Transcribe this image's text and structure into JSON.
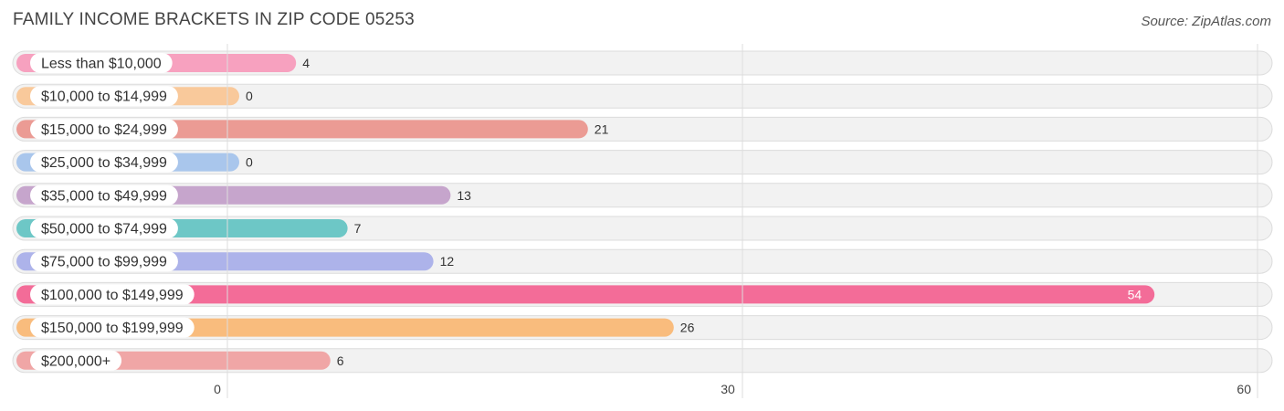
{
  "header": {
    "title": "FAMILY INCOME BRACKETS IN ZIP CODE 05253",
    "source": "Source: ZipAtlas.com"
  },
  "chart_data": {
    "type": "bar",
    "orientation": "horizontal",
    "title": "FAMILY INCOME BRACKETS IN ZIP CODE 05253",
    "categories": [
      "Less than $10,000",
      "$10,000 to $14,999",
      "$15,000 to $24,999",
      "$25,000 to $34,999",
      "$35,000 to $49,999",
      "$50,000 to $74,999",
      "$75,000 to $99,999",
      "$100,000 to $149,999",
      "$150,000 to $199,999",
      "$200,000+"
    ],
    "values": [
      4,
      0,
      21,
      0,
      13,
      7,
      12,
      54,
      26,
      6
    ],
    "colors": [
      "#f7a1bf",
      "#f9c99b",
      "#eb9b94",
      "#a9c6ec",
      "#c6a5cc",
      "#6dc7c6",
      "#adb3ea",
      "#f36c98",
      "#f9bc7d",
      "#f0a6a6"
    ],
    "xlim": [
      0,
      60
    ],
    "xticks": [
      0,
      30,
      60
    ],
    "grid": true
  }
}
